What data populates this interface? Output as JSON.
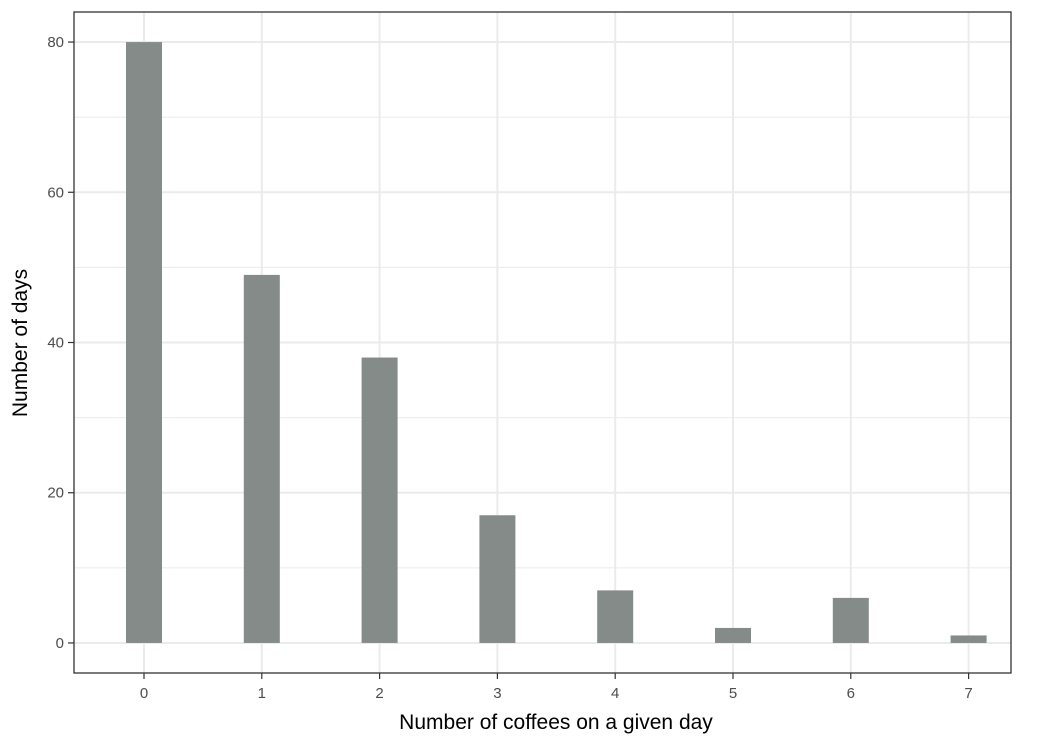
{
  "chart_data": {
    "type": "bar",
    "categories": [
      "0",
      "1",
      "2",
      "3",
      "4",
      "5",
      "6",
      "7"
    ],
    "values": [
      80,
      49,
      38,
      17,
      7,
      2,
      6,
      1
    ],
    "xlabel": "Number of coffees on a given day",
    "ylabel": "Number of days",
    "ylim": [
      -4,
      84
    ],
    "yticks": [
      0,
      20,
      40,
      60,
      80
    ],
    "grid": true,
    "colors": {
      "bar": "#858b89",
      "grid": "#ebebeb",
      "border": "#333333",
      "tick_text": "#4d4d4d"
    }
  }
}
